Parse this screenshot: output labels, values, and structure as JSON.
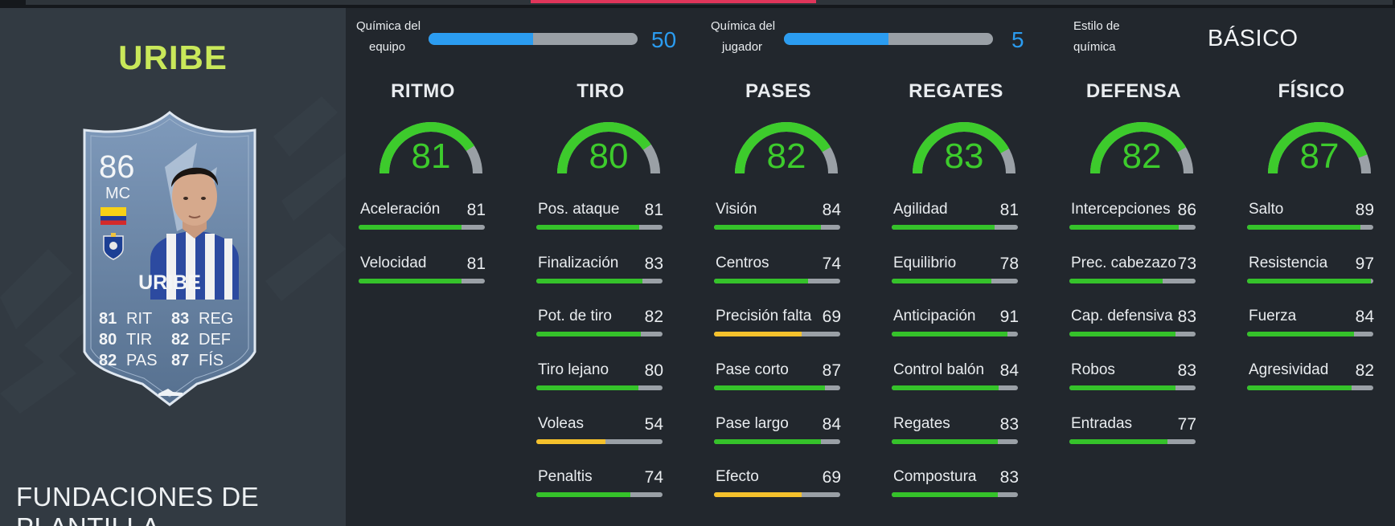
{
  "player": {
    "name": "URIBE",
    "card_name": "URIBE",
    "rating": "86",
    "position": "MC",
    "squad_label": "FUNDACIONES DE PLANTILLA",
    "card_stats": [
      {
        "value": "81",
        "label": "RIT"
      },
      {
        "value": "83",
        "label": "REG"
      },
      {
        "value": "80",
        "label": "TIR"
      },
      {
        "value": "82",
        "label": "DEF"
      },
      {
        "value": "82",
        "label": "PAS"
      },
      {
        "value": "87",
        "label": "FÍS"
      }
    ]
  },
  "chemistry": {
    "team_label_1": "Química del",
    "team_label_2": "equipo",
    "team_value": "50",
    "team_fraction": 0.5,
    "player_label_1": "Química del",
    "player_label_2": "jugador",
    "player_value": "5",
    "player_fraction": 0.5,
    "style_label_1": "Estilo de",
    "style_label_2": "química",
    "style_value": "BÁSICO"
  },
  "colors": {
    "accent_green": "#3dcb2c",
    "bar_green": "#35c22a",
    "bar_yellow": "#f5c12c",
    "chem_blue": "#2b9cf0",
    "name_lime": "#c9e85a"
  },
  "categories": [
    {
      "title": "RITMO",
      "value": 81,
      "attributes": [
        {
          "name": "Aceleración",
          "value": 81
        },
        {
          "name": "Velocidad",
          "value": 81
        }
      ]
    },
    {
      "title": "TIRO",
      "value": 80,
      "attributes": [
        {
          "name": "Pos. ataque",
          "value": 81
        },
        {
          "name": "Finalización",
          "value": 83
        },
        {
          "name": "Pot. de tiro",
          "value": 82
        },
        {
          "name": "Tiro lejano",
          "value": 80
        },
        {
          "name": "Voleas",
          "value": 54
        },
        {
          "name": "Penaltis",
          "value": 74
        }
      ]
    },
    {
      "title": "PASES",
      "value": 82,
      "attributes": [
        {
          "name": "Visión",
          "value": 84
        },
        {
          "name": "Centros",
          "value": 74
        },
        {
          "name": "Precisión falta",
          "value": 69
        },
        {
          "name": "Pase corto",
          "value": 87
        },
        {
          "name": "Pase largo",
          "value": 84
        },
        {
          "name": "Efecto",
          "value": 69
        }
      ]
    },
    {
      "title": "REGATES",
      "value": 83,
      "attributes": [
        {
          "name": "Agilidad",
          "value": 81
        },
        {
          "name": "Equilibrio",
          "value": 78
        },
        {
          "name": "Anticipación",
          "value": 91
        },
        {
          "name": "Control balón",
          "value": 84
        },
        {
          "name": "Regates",
          "value": 83
        },
        {
          "name": "Compostura",
          "value": 83
        }
      ]
    },
    {
      "title": "DEFENSA",
      "value": 82,
      "attributes": [
        {
          "name": "Intercepciones",
          "value": 86
        },
        {
          "name": "Prec. cabezazo",
          "value": 73
        },
        {
          "name": "Cap. defensiva",
          "value": 83
        },
        {
          "name": "Robos",
          "value": 83
        },
        {
          "name": "Entradas",
          "value": 77
        }
      ]
    },
    {
      "title": "FÍSICO",
      "value": 87,
      "attributes": [
        {
          "name": "Salto",
          "value": 89
        },
        {
          "name": "Resistencia",
          "value": 97
        },
        {
          "name": "Fuerza",
          "value": 84
        },
        {
          "name": "Agresividad",
          "value": 82
        }
      ]
    }
  ]
}
